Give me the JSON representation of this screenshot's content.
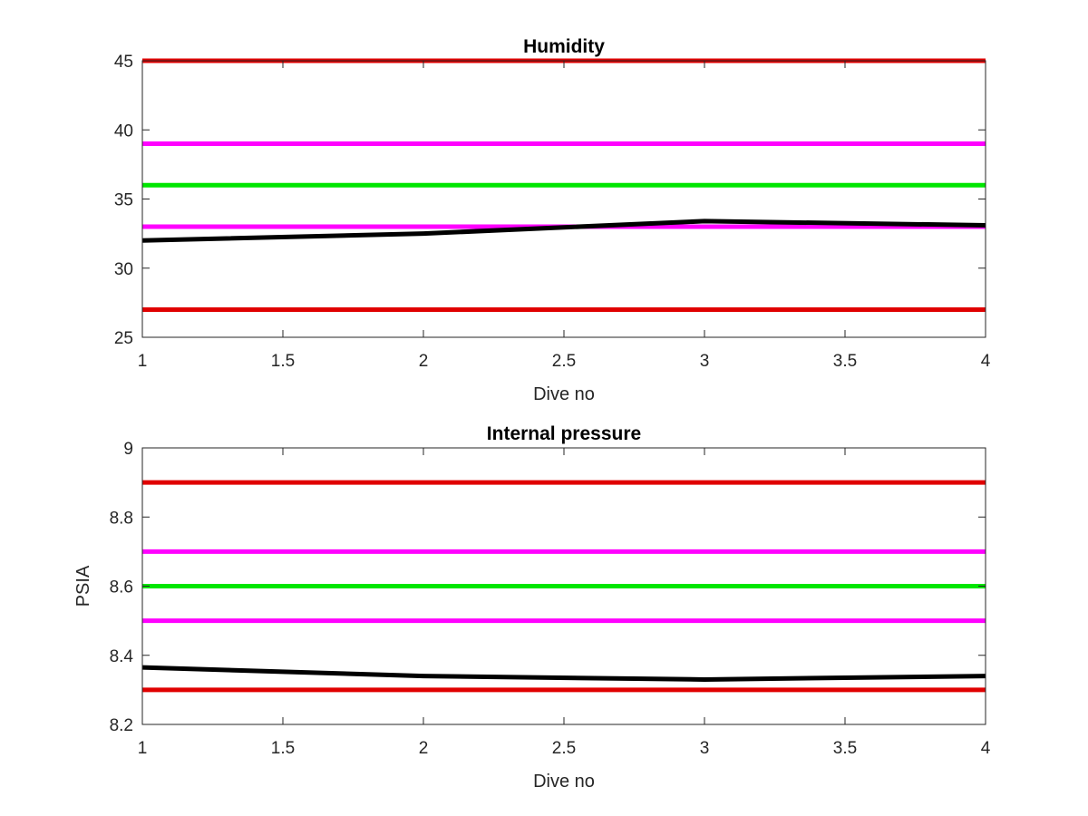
{
  "chart_data": [
    {
      "type": "line",
      "title": "Humidity",
      "xlabel": "Dive no",
      "ylabel": "",
      "xlim": [
        1,
        4
      ],
      "ylim": [
        25,
        45
      ],
      "xticks": [
        1,
        1.5,
        2,
        2.5,
        3,
        3.5,
        4
      ],
      "yticks": [
        25,
        30,
        35,
        40,
        45
      ],
      "grid": false,
      "series": [
        {
          "color": "#e00000",
          "x": [
            1,
            4
          ],
          "y": [
            45,
            45
          ]
        },
        {
          "color": "#ff00ff",
          "x": [
            1,
            4
          ],
          "y": [
            39,
            39
          ]
        },
        {
          "color": "#00e600",
          "x": [
            1,
            4
          ],
          "y": [
            36,
            36
          ]
        },
        {
          "color": "#ff00ff",
          "x": [
            1,
            4
          ],
          "y": [
            33,
            33
          ]
        },
        {
          "color": "#e00000",
          "x": [
            1,
            4
          ],
          "y": [
            27,
            27
          ]
        },
        {
          "color": "#000000",
          "x": [
            1,
            2,
            3,
            4
          ],
          "y": [
            32,
            32.5,
            33.4,
            33.1
          ]
        }
      ]
    },
    {
      "type": "line",
      "title": "Internal pressure",
      "xlabel": "Dive no",
      "ylabel": "PSIA",
      "xlim": [
        1,
        4
      ],
      "ylim": [
        8.2,
        9
      ],
      "xticks": [
        1,
        1.5,
        2,
        2.5,
        3,
        3.5,
        4
      ],
      "yticks": [
        8.2,
        8.4,
        8.6,
        8.8,
        9
      ],
      "grid": false,
      "series": [
        {
          "color": "#e00000",
          "x": [
            1,
            4
          ],
          "y": [
            8.9,
            8.9
          ]
        },
        {
          "color": "#ff00ff",
          "x": [
            1,
            4
          ],
          "y": [
            8.7,
            8.7
          ]
        },
        {
          "color": "#00e600",
          "x": [
            1,
            4
          ],
          "y": [
            8.6,
            8.6
          ]
        },
        {
          "color": "#ff00ff",
          "x": [
            1,
            4
          ],
          "y": [
            8.5,
            8.5
          ]
        },
        {
          "color": "#e00000",
          "x": [
            1,
            4
          ],
          "y": [
            8.3,
            8.3
          ]
        },
        {
          "color": "#000000",
          "x": [
            1,
            2,
            3,
            4
          ],
          "y": [
            8.365,
            8.34,
            8.33,
            8.34
          ]
        }
      ]
    }
  ]
}
